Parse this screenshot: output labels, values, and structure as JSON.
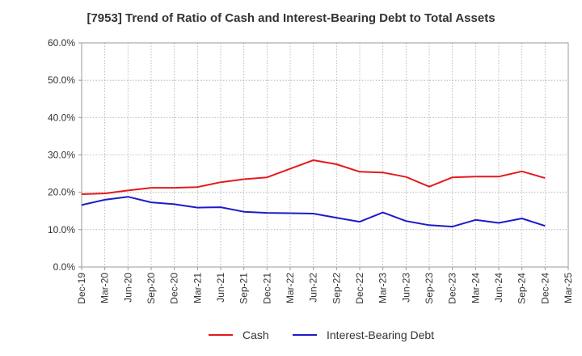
{
  "chart_data": {
    "type": "line",
    "title": "[7953]  Trend of Ratio of Cash and Interest-Bearing Debt to Total Assets",
    "x": [
      "Dec-19",
      "Mar-20",
      "Jun-20",
      "Sep-20",
      "Dec-20",
      "Mar-21",
      "Jun-21",
      "Sep-21",
      "Dec-21",
      "Mar-22",
      "Jun-22",
      "Sep-22",
      "Dec-22",
      "Mar-23",
      "Jun-23",
      "Sep-23",
      "Dec-23",
      "Mar-24",
      "Jun-24",
      "Sep-24",
      "Dec-24",
      "Mar-25"
    ],
    "y_ticks": [
      "0.0%",
      "10.0%",
      "20.0%",
      "30.0%",
      "40.0%",
      "50.0%",
      "60.0%"
    ],
    "ylim": [
      0,
      60
    ],
    "grid": true,
    "legend_position": "bottom-center",
    "series": [
      {
        "name": "Cash",
        "color": "#e41a1c",
        "values": [
          19.5,
          19.7,
          20.5,
          21.2,
          21.2,
          21.4,
          22.7,
          23.5,
          24.0,
          26.3,
          28.6,
          27.5,
          25.5,
          25.3,
          24.1,
          21.5,
          24.0,
          24.2,
          24.2,
          25.6,
          23.8,
          null
        ]
      },
      {
        "name": "Interest-Bearing Debt",
        "color": "#1c1cc8",
        "values": [
          16.6,
          18.0,
          18.8,
          17.3,
          16.8,
          15.9,
          16.0,
          14.8,
          14.5,
          14.4,
          14.3,
          13.2,
          12.1,
          14.6,
          12.3,
          11.2,
          10.8,
          12.6,
          11.8,
          13.0,
          11.0,
          null
        ]
      }
    ]
  }
}
